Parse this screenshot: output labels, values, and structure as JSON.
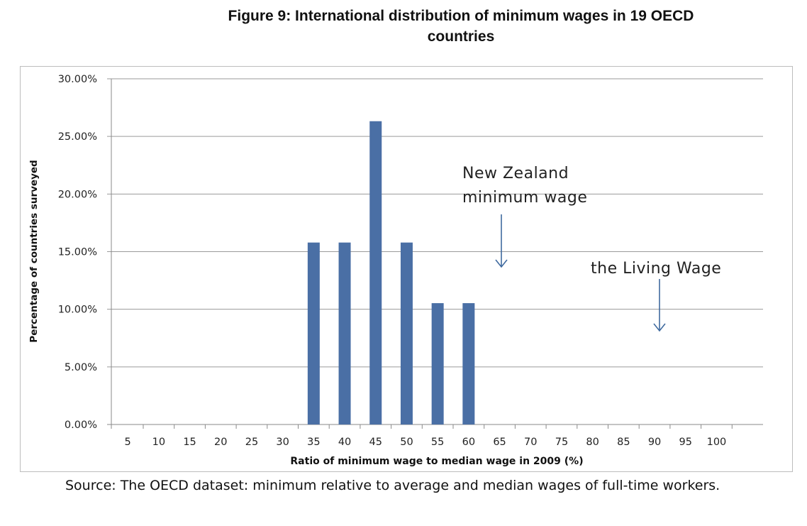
{
  "figure": {
    "title_line1": "Figure 9: International distribution of minimum wages in 19 OECD",
    "title_line2": "countries"
  },
  "chart_data": {
    "type": "bar",
    "xlabel": "Ratio of minimum wage to median wage in 2009 (%)",
    "ylabel": "Percentage of countries surveyed",
    "ylim": [
      0,
      30
    ],
    "yticks": [
      "0.00%",
      "5.00%",
      "10.00%",
      "15.00%",
      "20.00%",
      "25.00%",
      "30.00%"
    ],
    "categories": [
      "5",
      "10",
      "15",
      "20",
      "25",
      "30",
      "35",
      "40",
      "45",
      "50",
      "55",
      "60",
      "65",
      "70",
      "75",
      "80",
      "85",
      "90",
      "95",
      "100"
    ],
    "values": [
      0,
      0,
      0,
      0,
      0,
      0,
      15.79,
      15.79,
      26.32,
      15.79,
      10.53,
      10.53,
      0,
      0,
      0,
      0,
      0,
      0,
      0,
      0
    ],
    "bar_color": "#4a6fa5",
    "grid": true,
    "legend": "none",
    "annotations": [
      {
        "lines": [
          "New Zealand",
          "minimum wage"
        ],
        "x_value": 60
      },
      {
        "lines": [
          "the Living Wage"
        ],
        "x_value": 85
      }
    ]
  },
  "source_note": "Source: The OECD dataset: minimum relative to average and median wages of full-time workers."
}
